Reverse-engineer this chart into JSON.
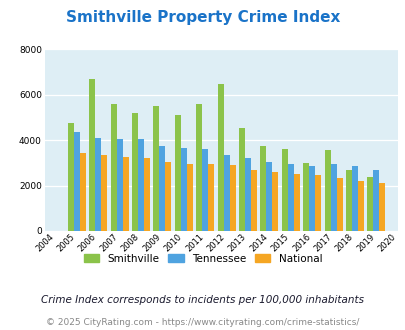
{
  "title": "Smithville Property Crime Index",
  "years": [
    2004,
    2005,
    2006,
    2007,
    2008,
    2009,
    2010,
    2011,
    2012,
    2013,
    2014,
    2015,
    2016,
    2017,
    2018,
    2019,
    2020
  ],
  "smithville": [
    0,
    4750,
    6700,
    5600,
    5200,
    5500,
    5100,
    5600,
    6500,
    4550,
    3750,
    3600,
    3000,
    3550,
    2700,
    2400,
    0
  ],
  "tennessee": [
    0,
    4350,
    4100,
    4050,
    4050,
    3750,
    3650,
    3600,
    3350,
    3200,
    3050,
    2950,
    2850,
    2950,
    2850,
    2700,
    0
  ],
  "national": [
    0,
    3450,
    3350,
    3250,
    3200,
    3050,
    2950,
    2950,
    2900,
    2700,
    2600,
    2500,
    2450,
    2350,
    2200,
    2100,
    0
  ],
  "color_smithville": "#8bc34a",
  "color_tennessee": "#4fa3e0",
  "color_national": "#f5a623",
  "bg_color": "#deeef5",
  "ylim": [
    0,
    8000
  ],
  "yticks": [
    0,
    2000,
    4000,
    6000,
    8000
  ],
  "legend_labels": [
    "Smithville",
    "Tennessee",
    "National"
  ],
  "footnote1": "Crime Index corresponds to incidents per 100,000 inhabitants",
  "footnote2": "© 2025 CityRating.com - https://www.cityrating.com/crime-statistics/",
  "title_color": "#1a73c8",
  "footnote1_color": "#1a1a2e",
  "footnote2_color": "#888888",
  "title_fontsize": 11,
  "footnote1_fontsize": 7.5,
  "footnote2_fontsize": 6.5
}
